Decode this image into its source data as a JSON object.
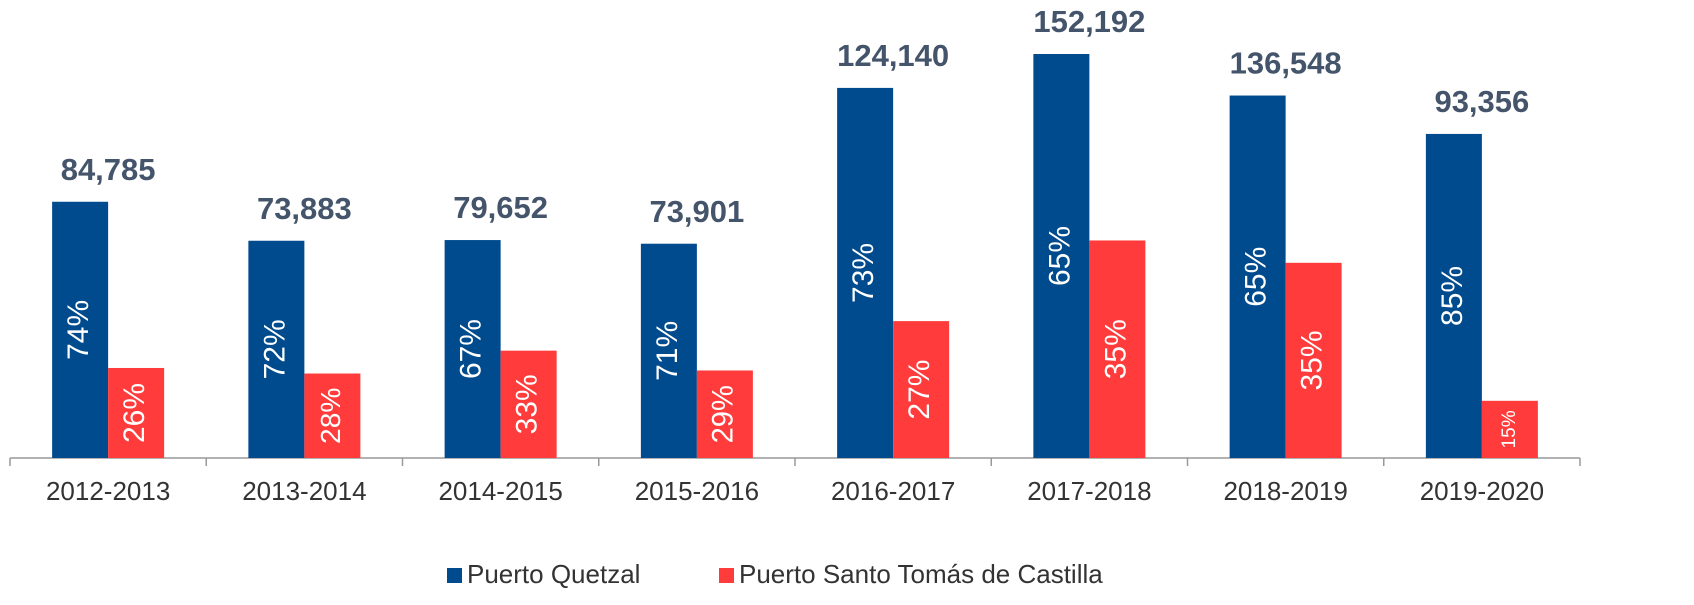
{
  "chart_data": {
    "type": "bar",
    "categories": [
      "2012-2013",
      "2013-2014",
      "2014-2015",
      "2015-2016",
      "2016-2017",
      "2017-2018",
      "2018-2019",
      "2019-2020"
    ],
    "totals": {
      "values": [
        84785,
        73883,
        79652,
        73901,
        124140,
        152192,
        136548,
        93356
      ],
      "value_labels": [
        "84,785",
        "73,883",
        "79,652",
        "73,901",
        "124,140",
        "152,192",
        "136,548",
        "93,356"
      ]
    },
    "series": [
      {
        "name": "Puerto Quetzal",
        "color": "#004b8d",
        "values": [
          74,
          72,
          67,
          71,
          73,
          65,
          65,
          85
        ],
        "value_labels": [
          "74%",
          "72%",
          "67%",
          "71%",
          "73%",
          "65%",
          "65%",
          "85%"
        ]
      },
      {
        "name": "Puerto Santo Tomás de Castilla",
        "color": "#ff3b3b",
        "values": [
          26,
          28,
          33,
          29,
          27,
          35,
          35,
          15
        ],
        "value_labels": [
          "26%",
          "28%",
          "33%",
          "29%",
          "27%",
          "35%",
          "35%",
          "15%"
        ]
      }
    ],
    "legend": "bottom"
  }
}
